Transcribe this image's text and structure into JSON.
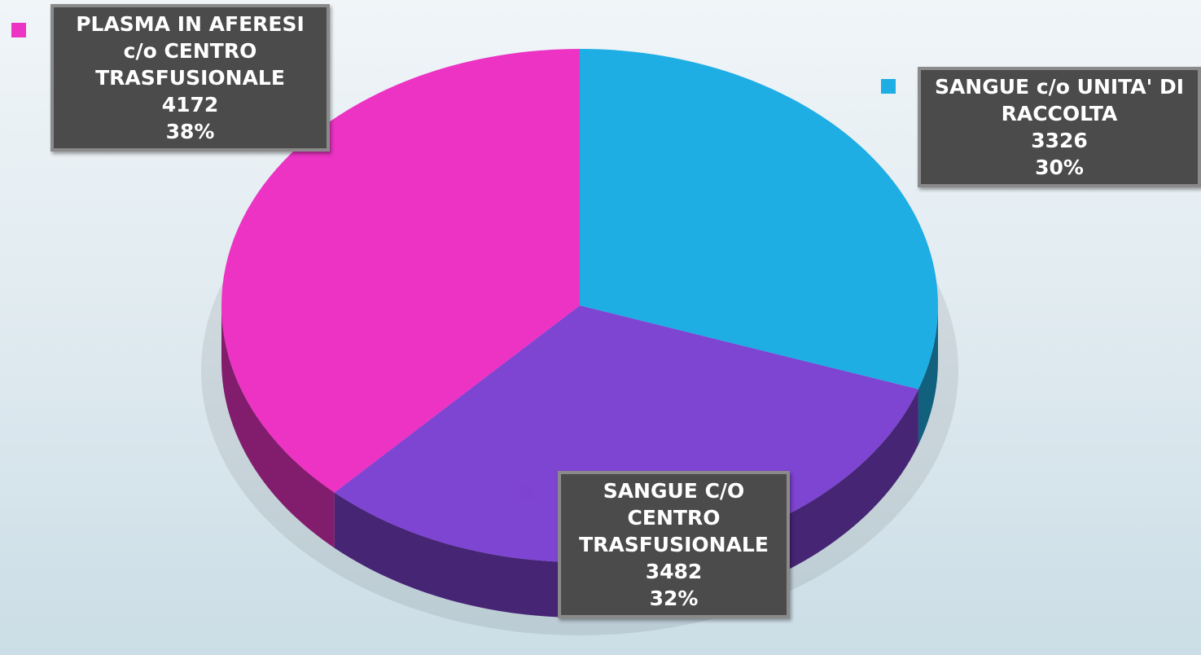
{
  "chart_data": {
    "type": "pie",
    "categories": [
      "SANGUE c/o UNITA' DI RACCOLTA",
      "SANGUE C/O CENTRO TRASFUSIONALE",
      "PLASMA IN AFERESI c/o CENTRO TRASFUSIONALE"
    ],
    "values": [
      3326,
      3482,
      4172
    ],
    "percent_labels": [
      "30%",
      "32%",
      "38%"
    ],
    "colors": [
      "#1eaee4",
      "#7e44d2",
      "#ec33c4"
    ],
    "legend": true
  }
}
